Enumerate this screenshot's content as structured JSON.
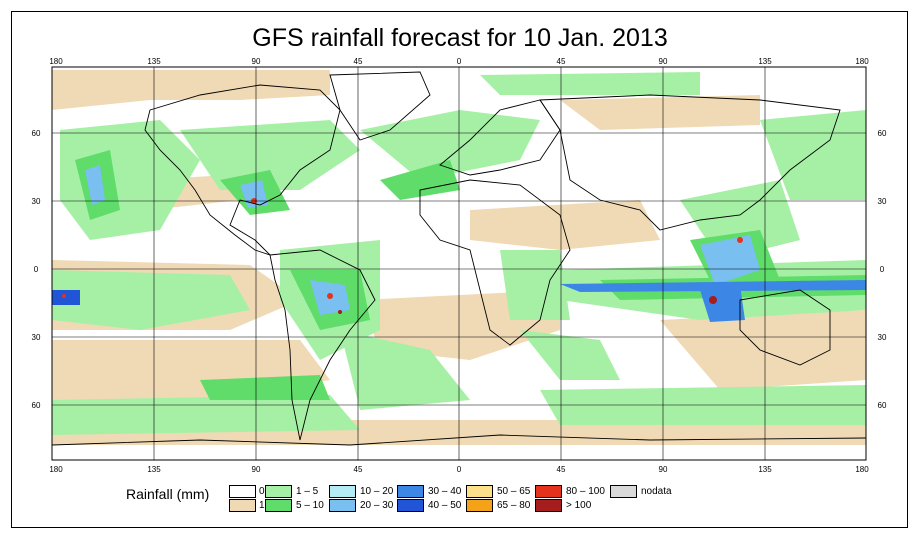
{
  "title": "GFS rainfall forecast for 10 Jan. 2013",
  "longitude_ticks": [
    "180",
    "135",
    "90",
    "45",
    "0",
    "45",
    "90",
    "135",
    "180"
  ],
  "latitude_ticks": [
    "60",
    "30",
    "0",
    "30",
    "60"
  ],
  "legend": {
    "title": "Rainfall (mm)",
    "items": [
      {
        "label": "0",
        "color": "#ffffff"
      },
      {
        "label": "1",
        "color": "#f0d9b5"
      },
      {
        "label": "1 – 5",
        "color": "#a6f0a6"
      },
      {
        "label": "5 – 10",
        "color": "#5fdc6a"
      },
      {
        "label": "10 – 20",
        "color": "#b3ecf5"
      },
      {
        "label": "20 – 30",
        "color": "#79bff0"
      },
      {
        "label": "30 – 40",
        "color": "#3c87e6"
      },
      {
        "label": "40 – 50",
        "color": "#1f55d6"
      },
      {
        "label": "50 – 65",
        "color": "#fde08a"
      },
      {
        "label": "65 – 80",
        "color": "#f5a21b"
      },
      {
        "label": "80 – 100",
        "color": "#e5321c"
      },
      {
        "label": "> 100",
        "color": "#a51d1d"
      },
      {
        "label": "nodata",
        "color": "#d9d9d9"
      }
    ]
  }
}
